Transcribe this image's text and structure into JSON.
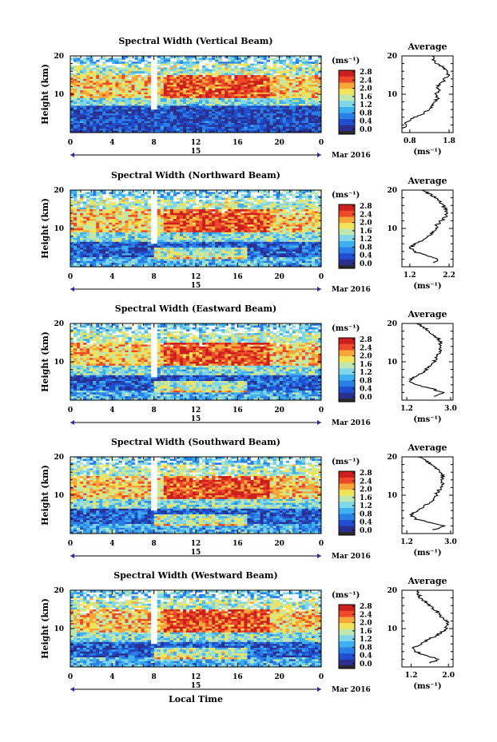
{
  "figure": {
    "xlabel": "Local Time",
    "date_label": "Mar 2016",
    "day_label": "15",
    "cbar_unit": "(ms⁻¹)",
    "avg_title": "Average",
    "avg_unit": "(ms⁻¹)",
    "ylabel": "Height (km)"
  },
  "colormap": [
    "#2b2f8f",
    "#1f4fd0",
    "#2a7fe6",
    "#3fb0ee",
    "#7fd6e8",
    "#bfe7b0",
    "#f2e45a",
    "#f7a63a",
    "#ee4a2a",
    "#cc1f1f"
  ],
  "chart_data": [
    {
      "type": "heatmap",
      "title": "Spectral Width (Vertical Beam)",
      "x": [
        0,
        4,
        8,
        12,
        16,
        20,
        24
      ],
      "xticklabels": [
        "0",
        "4",
        "8",
        "12",
        "16",
        "20",
        "0"
      ],
      "xlim": [
        0,
        24
      ],
      "ylim": [
        0,
        20
      ],
      "yticks": [
        10,
        20
      ],
      "colorbar": {
        "ticks": [
          "0.0",
          "0.4",
          "0.8",
          "1.2",
          "1.6",
          "2.0",
          "2.4",
          "2.8"
        ],
        "range": [
          0,
          2.8
        ]
      },
      "average": {
        "title": "Average",
        "xticks": [
          "0.8",
          "1.8"
        ],
        "xlim": [
          0.6,
          1.9
        ],
        "y": [
          1,
          2,
          3,
          4,
          5,
          6,
          7,
          8,
          9,
          10,
          11,
          12,
          13,
          14,
          15,
          16,
          17,
          18,
          19,
          20
        ],
        "values": [
          0.65,
          0.68,
          0.75,
          0.95,
          1.15,
          1.3,
          1.4,
          1.45,
          1.5,
          1.45,
          1.55,
          1.5,
          1.6,
          1.7,
          1.8,
          1.75,
          1.65,
          1.5,
          1.4,
          1.35
        ]
      }
    },
    {
      "type": "heatmap",
      "title": "Spectral Width (Northward Beam)",
      "x": [
        0,
        4,
        8,
        12,
        16,
        20,
        24
      ],
      "xticklabels": [
        "0",
        "4",
        "8",
        "12",
        "16",
        "20",
        "0"
      ],
      "xlim": [
        0,
        24
      ],
      "ylim": [
        0,
        20
      ],
      "yticks": [
        10,
        20
      ],
      "colorbar": {
        "ticks": [
          "0.0",
          "0.4",
          "0.8",
          "1.2",
          "1.6",
          "2.0",
          "2.4",
          "2.8"
        ],
        "range": [
          0,
          2.8
        ]
      },
      "average": {
        "title": "Average",
        "xticks": [
          "1.2",
          "2.2"
        ],
        "xlim": [
          1.0,
          2.3
        ],
        "y": [
          1,
          2,
          3,
          4,
          5,
          6,
          7,
          8,
          9,
          10,
          11,
          12,
          13,
          14,
          15,
          16,
          17,
          18,
          19,
          20
        ],
        "values": [
          1.8,
          1.9,
          1.6,
          1.3,
          1.2,
          1.35,
          1.55,
          1.7,
          1.8,
          1.85,
          1.9,
          2.0,
          2.1,
          2.15,
          2.1,
          2.05,
          1.95,
          1.85,
          1.7,
          1.5
        ]
      }
    },
    {
      "type": "heatmap",
      "title": "Spectral Width (Eastward Beam)",
      "x": [
        0,
        4,
        8,
        12,
        16,
        20,
        24
      ],
      "xticklabels": [
        "0",
        "4",
        "8",
        "12",
        "16",
        "20",
        "0"
      ],
      "xlim": [
        0,
        24
      ],
      "ylim": [
        0,
        20
      ],
      "yticks": [
        10,
        20
      ],
      "colorbar": {
        "ticks": [
          "0.0",
          "0.4",
          "0.8",
          "1.2",
          "1.6",
          "2.0",
          "2.4",
          "2.8"
        ],
        "range": [
          0,
          2.8
        ]
      },
      "average": {
        "title": "Average",
        "xticks": [
          "1.2",
          "3.0"
        ],
        "xlim": [
          1.0,
          3.1
        ],
        "y": [
          1,
          2,
          3,
          4,
          5,
          6,
          7,
          8,
          9,
          10,
          11,
          12,
          13,
          14,
          15,
          16,
          17,
          18,
          19,
          20
        ],
        "values": [
          2.4,
          2.7,
          2.2,
          1.6,
          1.3,
          1.5,
          1.8,
          2.0,
          2.2,
          2.3,
          2.4,
          2.5,
          2.6,
          2.5,
          2.6,
          2.5,
          2.3,
          2.1,
          1.9,
          1.6
        ]
      }
    },
    {
      "type": "heatmap",
      "title": "Spectral Width (Southward Beam)",
      "x": [
        0,
        4,
        8,
        12,
        16,
        20,
        24
      ],
      "xticklabels": [
        "0",
        "4",
        "8",
        "12",
        "16",
        "20",
        "0"
      ],
      "xlim": [
        0,
        24
      ],
      "ylim": [
        0,
        20
      ],
      "yticks": [
        10,
        20
      ],
      "colorbar": {
        "ticks": [
          "0.0",
          "0.4",
          "0.8",
          "1.2",
          "1.6",
          "2.0",
          "2.4",
          "2.8"
        ],
        "range": [
          0,
          2.8
        ]
      },
      "average": {
        "title": "Average",
        "xticks": [
          "1.2",
          "3.0"
        ],
        "xlim": [
          1.0,
          3.1
        ],
        "y": [
          1,
          2,
          3,
          4,
          5,
          6,
          7,
          8,
          9,
          10,
          11,
          12,
          13,
          14,
          15,
          16,
          17,
          18,
          19,
          20
        ],
        "values": [
          2.3,
          2.8,
          2.0,
          1.5,
          1.4,
          1.6,
          1.9,
          2.1,
          2.3,
          2.4,
          2.5,
          2.6,
          2.7,
          2.6,
          2.7,
          2.6,
          2.4,
          2.2,
          2.0,
          1.7
        ]
      }
    },
    {
      "type": "heatmap",
      "title": "Spectral Width (Westward Beam)",
      "x": [
        0,
        4,
        8,
        12,
        16,
        20,
        24
      ],
      "xticklabels": [
        "0",
        "4",
        "8",
        "12",
        "16",
        "20",
        "0"
      ],
      "xlim": [
        0,
        24
      ],
      "ylim": [
        0,
        20
      ],
      "yticks": [
        10,
        20
      ],
      "colorbar": {
        "ticks": [
          "0.0",
          "0.4",
          "0.8",
          "1.2",
          "1.6",
          "2.0",
          "2.4",
          "2.8"
        ],
        "range": [
          0,
          2.8
        ]
      },
      "average": {
        "title": "Average",
        "xticks": [
          "1.2",
          "2.0"
        ],
        "xlim": [
          1.0,
          2.1
        ],
        "y": [
          1,
          2,
          3,
          4,
          5,
          6,
          7,
          8,
          9,
          10,
          11,
          12,
          13,
          14,
          15,
          16,
          17,
          18,
          19,
          20
        ],
        "values": [
          1.6,
          1.8,
          1.5,
          1.3,
          1.25,
          1.4,
          1.55,
          1.7,
          1.85,
          1.95,
          2.0,
          1.95,
          1.85,
          1.8,
          1.7,
          1.6,
          1.5,
          1.4,
          1.35,
          1.3
        ]
      }
    }
  ]
}
